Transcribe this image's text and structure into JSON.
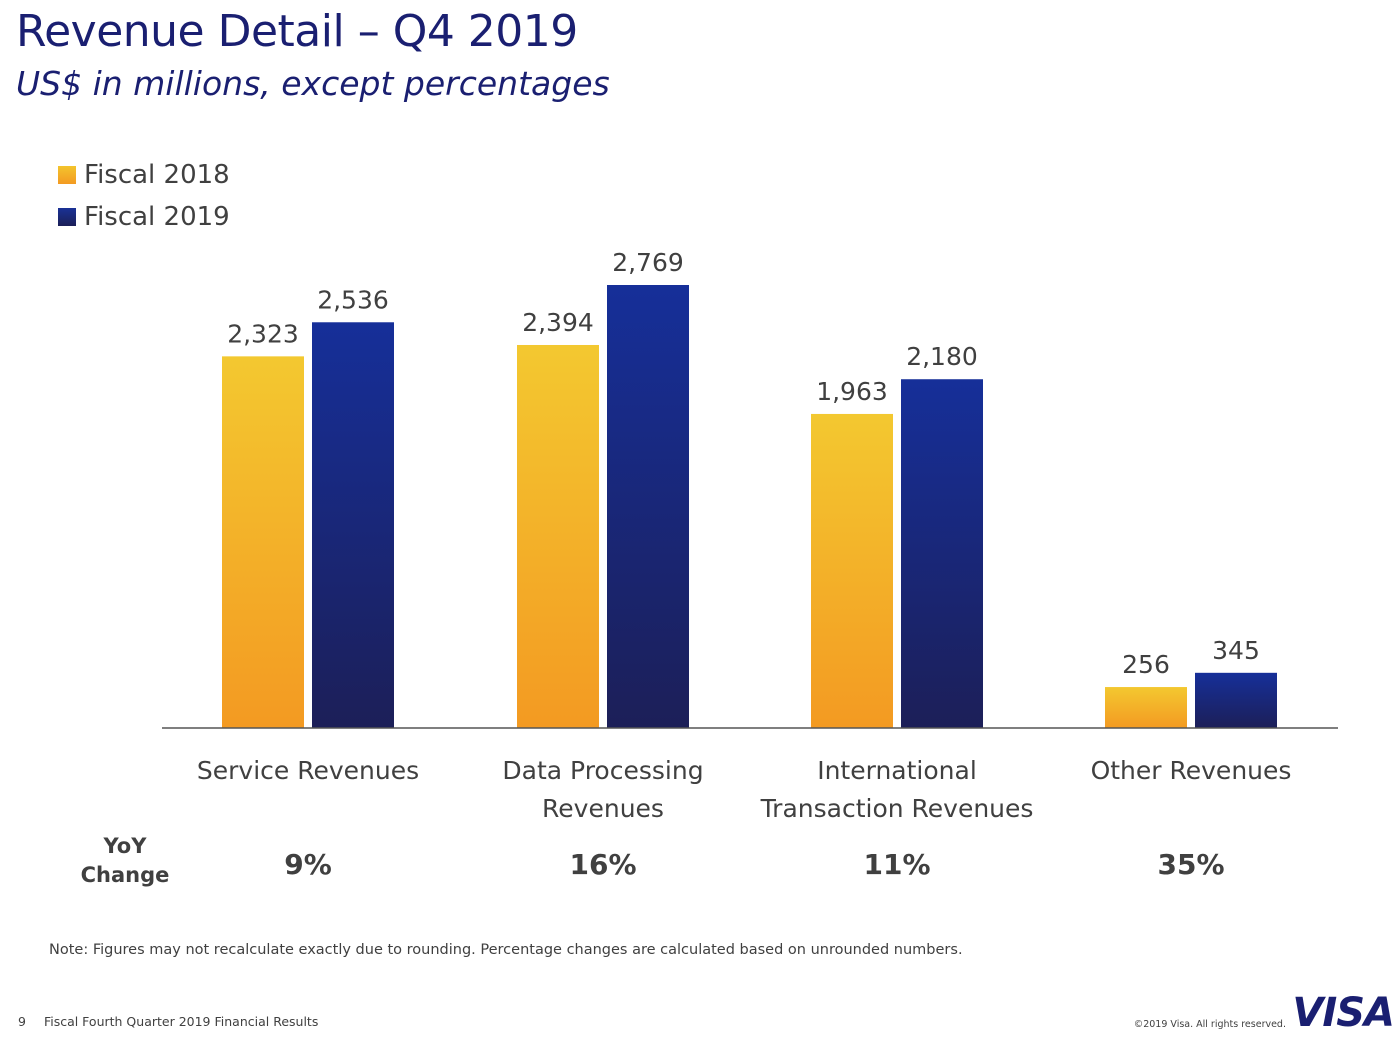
{
  "header": {
    "title": "Revenue Detail – Q4 2019",
    "subtitle": "US$ in millions, except percentages"
  },
  "legend": [
    {
      "label": "Fiscal 2018",
      "color": "#f3b42a"
    },
    {
      "label": "Fiscal 2019",
      "color": "#1a2a80"
    }
  ],
  "yoy_header": {
    "line1": "YoY",
    "line2": "Change"
  },
  "chart_data": {
    "type": "bar",
    "categories": [
      [
        "Service Revenues"
      ],
      [
        "Data Processing",
        "Revenues"
      ],
      [
        "International",
        "Transaction Revenues"
      ],
      [
        "Other Revenues"
      ]
    ],
    "series": [
      {
        "name": "Fiscal 2018",
        "values": [
          2323,
          2394,
          1963,
          256
        ],
        "labels": [
          "2,323",
          "2,394",
          "1,963",
          "256"
        ],
        "color": "#f3b42a"
      },
      {
        "name": "Fiscal 2019",
        "values": [
          2536,
          2769,
          2180,
          345
        ],
        "labels": [
          "2,536",
          "2,769",
          "2,180",
          "345"
        ],
        "color": "#1a2a80"
      }
    ],
    "yoy_change": [
      "9%",
      "16%",
      "11%",
      "35%"
    ],
    "ylim": [
      0,
      2769
    ],
    "grid": false,
    "legend_position": "top-left"
  },
  "note": "Note: Figures may not recalculate exactly due to rounding. Percentage changes are calculated based on unrounded numbers.",
  "footer": {
    "page_number": "9",
    "doc_title": "Fiscal Fourth Quarter 2019 Financial Results",
    "copyright": "©2019 Visa. All rights reserved.",
    "logo": "VISA"
  }
}
